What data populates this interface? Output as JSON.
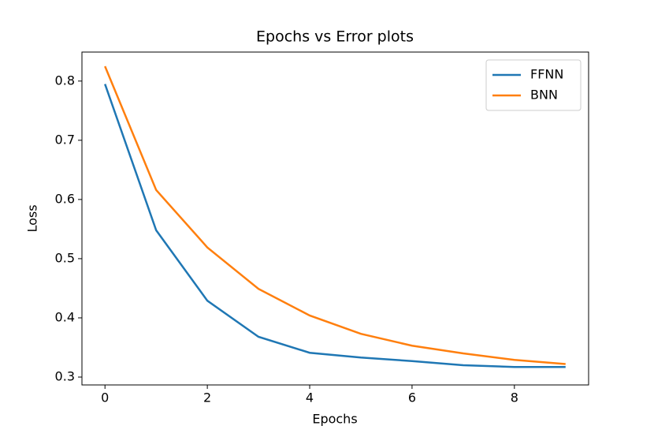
{
  "chart_data": {
    "type": "line",
    "title": "Epochs vs Error plots",
    "x_label": "Epochs",
    "y_label": "Loss",
    "x": [
      0,
      1,
      2,
      3,
      4,
      5,
      6,
      7,
      8,
      9
    ],
    "series": [
      {
        "name": "FFNN",
        "color": "#1f77b4",
        "values": [
          0.795,
          0.548,
          0.429,
          0.368,
          0.341,
          0.333,
          0.327,
          0.32,
          0.317,
          0.317
        ]
      },
      {
        "name": "BNN",
        "color": "#ff7f0e",
        "values": [
          0.825,
          0.616,
          0.519,
          0.449,
          0.404,
          0.373,
          0.353,
          0.34,
          0.329,
          0.322
        ]
      }
    ],
    "xlim": [
      -0.45,
      9.45
    ],
    "xticks": [
      0,
      2,
      4,
      6,
      8
    ],
    "ylim": [
      0.2867,
      0.849
    ],
    "yticks": [
      0.3,
      0.4,
      0.5,
      0.6,
      0.7,
      0.8
    ],
    "legend": "upper right",
    "grid": false
  }
}
